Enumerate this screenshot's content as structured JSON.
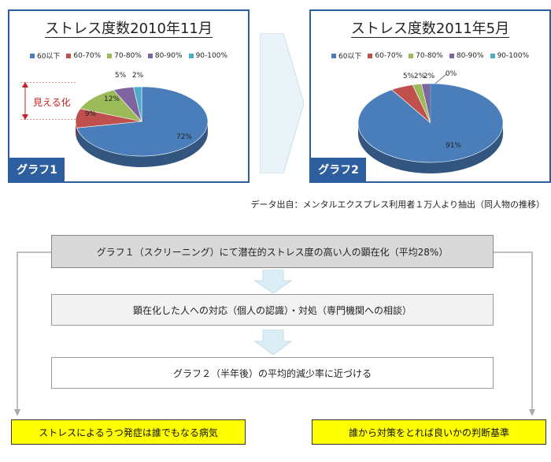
{
  "chart_data": [
    {
      "type": "pie",
      "title": "ストレス度数2010年11月",
      "categories": [
        "60以下",
        "60-70%",
        "70-80%",
        "80-90%",
        "90-100%"
      ],
      "values": [
        72,
        9,
        12,
        5,
        2
      ],
      "value_labels": [
        "72%",
        "9%",
        "12%",
        "5%",
        "2%"
      ],
      "colors": [
        "#4a7ebb",
        "#c0504d",
        "#9bbb59",
        "#8064a2",
        "#4bacc6"
      ],
      "legend_position": "top",
      "tag": "グラフ1"
    },
    {
      "type": "pie",
      "title": "ストレス度数2011年5月",
      "categories": [
        "60以下",
        "60-70%",
        "70-80%",
        "80-90%",
        "90-100%"
      ],
      "values": [
        91,
        5,
        2,
        2,
        0
      ],
      "value_labels": [
        "91%",
        "5%",
        "2%",
        "2%",
        "0%"
      ],
      "colors": [
        "#4a7ebb",
        "#c0504d",
        "#9bbb59",
        "#8064a2",
        "#4bacc6"
      ],
      "legend_position": "top",
      "tag": "グラフ2"
    }
  ],
  "annotation": "見える化",
  "source": "データ出自：メンタルエクスプレス利用者１万人より抽出（同人物の推移）",
  "flow": {
    "step1": "グラフ１（スクリーニング）にて潜在的ストレス度の高い人の顕在化（平均28%）",
    "step2": "顕在化した人への対応（個人の認識）・対処（専門機関への相談）",
    "step3": "グラフ２（半年後）の平均的減少率に近づける"
  },
  "outcomes": {
    "left": "ストレスによるうつ発症は誰でもなる病気",
    "right": "誰から対策をとれば良いかの判断基準"
  }
}
